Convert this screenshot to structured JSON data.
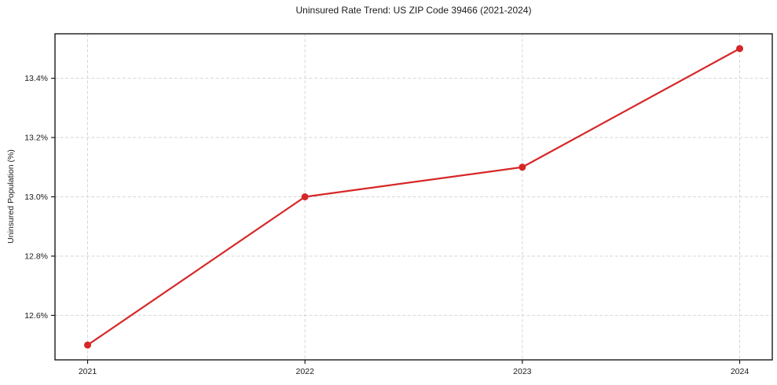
{
  "figure": {
    "background": "#ffffff"
  },
  "chart_data": {
    "type": "line",
    "title": "Uninsured Rate Trend: US ZIP Code 39466 (2021-2024)",
    "ylabel": "Uninsured Population (%)",
    "xlabel": "",
    "x": [
      2021,
      2022,
      2023,
      2024
    ],
    "xtick_labels": [
      "2021",
      "2022",
      "2023",
      "2024"
    ],
    "series": [
      {
        "values": [
          12.5,
          13.0,
          13.1,
          13.5
        ],
        "color": "#d62728",
        "marker": "circle",
        "line_width": 2.2,
        "marker_radius": 4.5
      }
    ],
    "yticks": [
      12.6,
      12.8,
      13.0,
      13.2,
      13.4
    ],
    "ytick_labels": [
      "12.6%",
      "12.8%",
      "13.0%",
      "13.2%",
      "13.4%"
    ],
    "xlim": [
      2020.85,
      2024.15
    ],
    "ylim": [
      12.45,
      13.55
    ],
    "grid": true,
    "grid_style": "dashed",
    "grid_color": "#d6d6d6",
    "axis_color": "#1a1a1a",
    "text_color": "#1a1a1a",
    "legend": "none"
  }
}
